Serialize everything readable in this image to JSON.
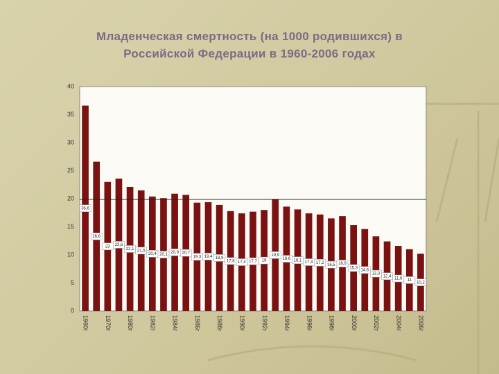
{
  "chart_data": {
    "type": "bar",
    "title": "Младенческая смертность (на 1000 родившихся) в\nРоссийской Федерации в 1960-2006 годах",
    "categories": [
      "1960г",
      null,
      "1970г",
      null,
      "1980г",
      null,
      "1982г",
      null,
      "1984г",
      null,
      "1986г",
      null,
      "1988г",
      null,
      "1990г",
      null,
      "1992г",
      null,
      "1994г",
      null,
      "1996г",
      null,
      "1998г",
      null,
      "2000г",
      null,
      "2002г",
      null,
      "2004г",
      null,
      "2006г"
    ],
    "values": [
      36.6,
      26.6,
      23,
      23.6,
      22.1,
      21.5,
      20.4,
      20.1,
      20.9,
      20.7,
      19.3,
      19.4,
      18.9,
      17.8,
      17.4,
      17.7,
      18,
      19.9,
      18.6,
      18.1,
      17.4,
      17.2,
      16.5,
      16.9,
      15.3,
      14.6,
      13.3,
      12.4,
      11.6,
      11,
      10.2
    ],
    "value_labels": [
      "36,6",
      "26,6",
      "23",
      "23,6",
      "22,1",
      "21,5",
      "20,4",
      "20,1",
      "20,9",
      "20,7",
      "19,3",
      "19,4",
      "18,9",
      "17,8",
      "17,4",
      "17,7",
      "18",
      "19,9",
      "18,6",
      "18,1",
      "17,4",
      "17,2",
      "16,5",
      "16,9",
      "15,3",
      "14,6",
      "13,3",
      "12,4",
      "11,6",
      "11",
      "10,2"
    ],
    "reference_line": 19.9,
    "color": "#7a1212",
    "ylim": [
      0,
      40
    ],
    "yticks": [
      0,
      5,
      10,
      15,
      20,
      25,
      30,
      35,
      40
    ],
    "grid": false
  }
}
